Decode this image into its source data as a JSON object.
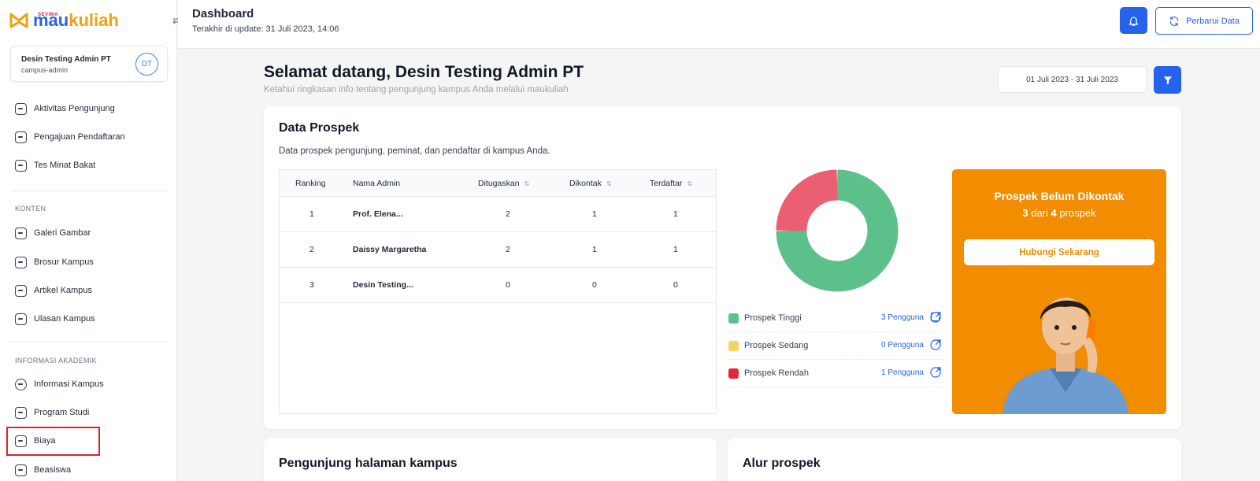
{
  "brand": {
    "name_part1": "mau",
    "name_part2": "kuliah",
    "sub": "SEVIMA"
  },
  "profile": {
    "name": "Desin Testing Admin PT",
    "role": "campus-admin",
    "initials": "DT"
  },
  "sidebar": {
    "main_items": [
      {
        "label": "Aktivitas Pengunjung"
      },
      {
        "label": "Pengajuan Pendaftaran"
      },
      {
        "label": "Tes Minat Bakat"
      }
    ],
    "section_konten": "KONTEN",
    "konten_items": [
      {
        "label": "Galeri Gambar"
      },
      {
        "label": "Brosur Kampus"
      },
      {
        "label": "Artikel Kampus"
      },
      {
        "label": "Ulasan Kampus"
      }
    ],
    "section_akademik": "INFORMASI AKADEMIK",
    "akademik_items": [
      {
        "label": "Informasi Kampus"
      },
      {
        "label": "Program Studi"
      },
      {
        "label": "Biaya"
      },
      {
        "label": "Beasiswa"
      }
    ]
  },
  "header": {
    "title": "Dashboard",
    "updated": "Terakhir di update: 31 Juli 2023, 14:06",
    "refresh_label": "Perbarui Data"
  },
  "welcome": {
    "title": "Selamat datang, Desin Testing Admin PT",
    "subtitle": "Ketahui ringkasan info tentang pengunjung kampus Anda melalui maukuliah",
    "date_range": "01 Juli 2023 - 31 Juli 2023"
  },
  "prospek": {
    "title": "Data Prospek",
    "description": "Data prospek pengunjung, peminat, dan pendaftar di kampus Anda.",
    "columns": [
      "Ranking",
      "Nama Admin",
      "Ditugaskan",
      "Dikontak",
      "Terdaftar"
    ],
    "rows": [
      {
        "rank": "1",
        "name": "Prof. Elena...",
        "assigned": "2",
        "contacted": "1",
        "registered": "1"
      },
      {
        "rank": "2",
        "name": "Daissy Margaretha",
        "assigned": "2",
        "contacted": "1",
        "registered": "1"
      },
      {
        "rank": "3",
        "name": "Desin Testing...",
        "assigned": "0",
        "contacted": "0",
        "registered": "0"
      }
    ],
    "legend": [
      {
        "label": "Prospek Tinggi",
        "count": "3 Pengguna",
        "color": "#5cc08b"
      },
      {
        "label": "Prospek Sedang",
        "count": "0 Pengguna",
        "color": "#f5d45e"
      },
      {
        "label": "Prospek Rendah",
        "count": "1 Pengguna",
        "color": "#e0283c"
      }
    ],
    "donut": {
      "values": [
        3,
        0,
        1
      ],
      "colors": [
        "#5cc08b",
        "#f5d45e",
        "#eb5f72"
      ]
    },
    "promo": {
      "title": "Prospek Belum Dikontak",
      "subtitle_prefix": "3",
      "subtitle_mid": " dari ",
      "subtitle_total": "4",
      "subtitle_suffix": " prospek",
      "button": "Hubungi Sekarang"
    }
  },
  "bottom": {
    "visitors_title": "Pengunjung halaman kampus",
    "flow_title": "Alur prospek"
  },
  "colors": {
    "primary": "#2563eb",
    "orange": "#f28c00"
  }
}
